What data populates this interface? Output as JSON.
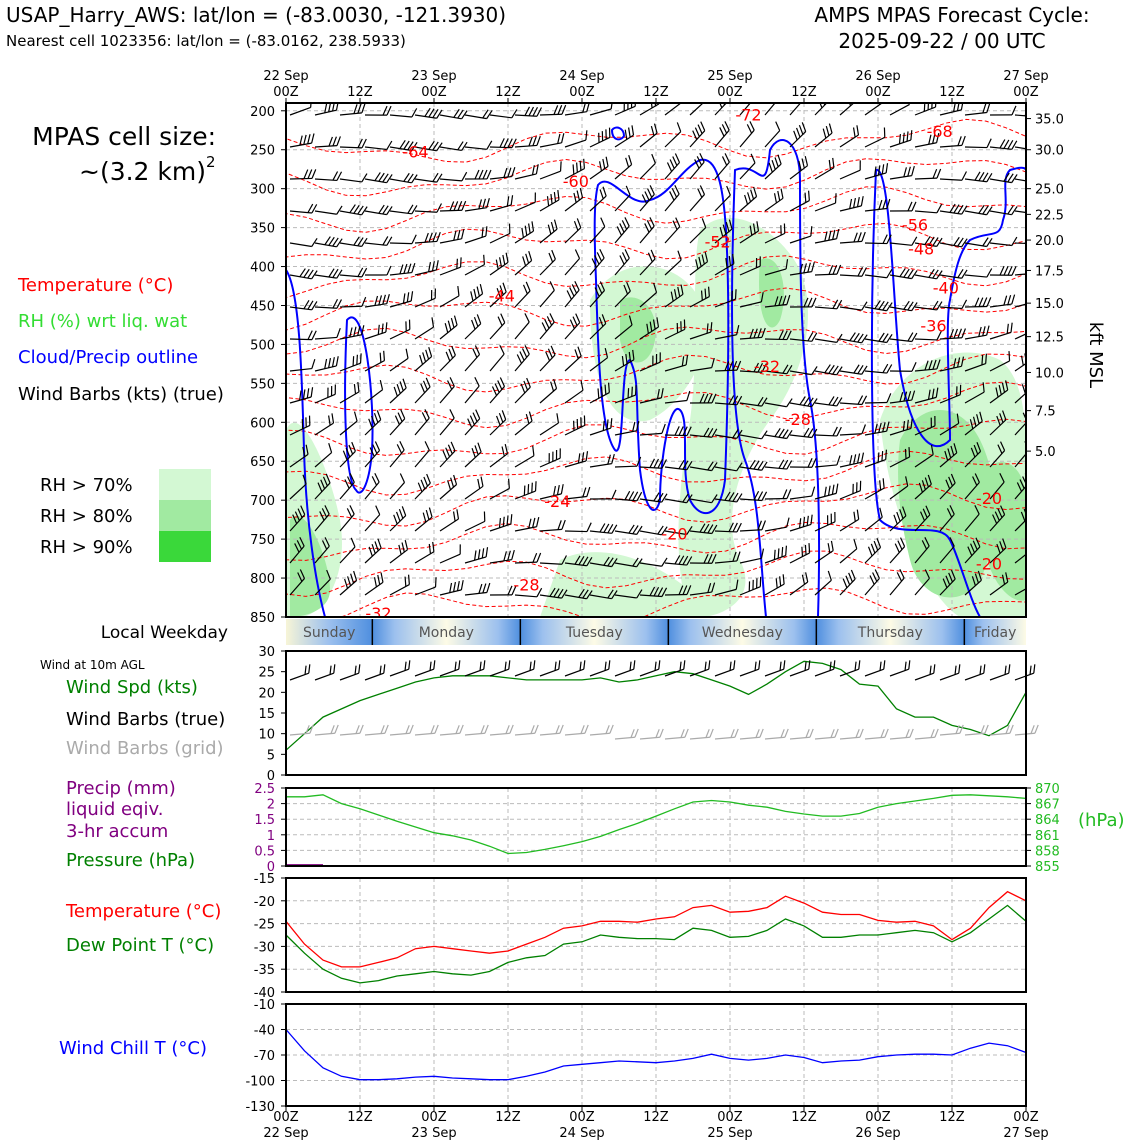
{
  "header": {
    "title_left": "USAP_Harry_AWS: lat/lon = (-83.0030, -121.3930)",
    "subtitle_left": "Nearest cell 1023356: lat/lon = (-83.0162, 238.5933)",
    "title_right_1": "AMPS MPAS Forecast Cycle:",
    "title_right_2": "2025-09-22 / 00 UTC"
  },
  "legend": {
    "cell_size_1": "MPAS cell size:",
    "cell_size_2": "~(3.2 km)",
    "cell_size_sup": "2",
    "temperature": "Temperature (°C)",
    "rh": "RH (%) wrt liq. wat",
    "cloud": "Cloud/Precip outline",
    "barbs": "Wind Barbs (kts) (true)",
    "rh70": "RH > 70%",
    "rh80": "RH > 80%",
    "rh90": "RH > 90%",
    "wind10m": "Wind at 10m AGL",
    "wind_spd": "Wind Spd (kts)",
    "wind_barbs_true": "Wind Barbs (true)",
    "wind_barbs_grid": "Wind Barbs (grid)",
    "precip_1": "Precip (mm)",
    "precip_2": "liquid eqiv.",
    "precip_3": "3-hr accum",
    "pressure": "Pressure (hPa)",
    "pressure_unit": "(hPa)",
    "temp2": "Temperature (°C)",
    "dewpoint": "Dew Point T (°C)",
    "windchill": "Wind Chill T (°C)",
    "local_weekday": "Local Weekday",
    "kft": "kft MSL"
  },
  "colors": {
    "temp": "#ff0000",
    "rh70": "#d3f8d3",
    "rh80": "#a1eaa1",
    "rh90": "#3ad83a",
    "cloud": "#0000ff",
    "wind_spd": "#008000",
    "grid_barb": "#aaaaaa",
    "precip": "#800080",
    "pressure": "#22bb22",
    "windchill": "#0000ff"
  },
  "chart_data": [
    {
      "type": "heatmap",
      "name_of_panel": "cross-section",
      "x_top_labels": [
        [
          "22 Sep",
          "00Z"
        ],
        [
          "",
          "12Z"
        ],
        [
          "23 Sep",
          "00Z"
        ],
        [
          "",
          "12Z"
        ],
        [
          "24 Sep",
          "00Z"
        ],
        [
          "",
          "12Z"
        ],
        [
          "25 Sep",
          "00Z"
        ],
        [
          "",
          "12Z"
        ],
        [
          "26 Sep",
          "00Z"
        ],
        [
          "",
          "12Z"
        ],
        [
          "27 Sep",
          "00Z"
        ]
      ],
      "x_hours_range": [
        0,
        120
      ],
      "y_pressure_ticks": [
        200,
        250,
        300,
        350,
        400,
        450,
        500,
        550,
        600,
        650,
        700,
        750,
        800,
        850
      ],
      "y_range": [
        190,
        850
      ],
      "y_right_kft_ticks": [
        {
          "p": 210,
          "label": "35.0"
        },
        {
          "p": 250,
          "label": "30.0"
        },
        {
          "p": 300,
          "label": "25.0"
        },
        {
          "p": 333,
          "label": "22.5"
        },
        {
          "p": 366,
          "label": "20.0"
        },
        {
          "p": 405,
          "label": "17.5"
        },
        {
          "p": 447,
          "label": "15.0"
        },
        {
          "p": 490,
          "label": "12.5"
        },
        {
          "p": 536,
          "label": "10.0"
        },
        {
          "p": 585,
          "label": "7.5"
        },
        {
          "p": 637,
          "label": "5.0"
        }
      ],
      "temp_labels": [
        {
          "x": 21,
          "p": 252,
          "v": "-64"
        },
        {
          "x": 47,
          "p": 290,
          "v": "-60"
        },
        {
          "x": 75,
          "p": 205,
          "v": "-72"
        },
        {
          "x": 106,
          "p": 226,
          "v": "-68"
        },
        {
          "x": 102,
          "p": 346,
          "v": "-56"
        },
        {
          "x": 103,
          "p": 377,
          "v": "-48"
        },
        {
          "x": 107,
          "p": 427,
          "v": "-40"
        },
        {
          "x": 105,
          "p": 476,
          "v": "-36"
        },
        {
          "x": 35,
          "p": 437,
          "v": "-44"
        },
        {
          "x": 70,
          "p": 368,
          "v": "-52"
        },
        {
          "x": 78,
          "p": 528,
          "v": "-32"
        },
        {
          "x": 83,
          "p": 596,
          "v": "-28"
        },
        {
          "x": 44,
          "p": 701,
          "v": "-24"
        },
        {
          "x": 63,
          "p": 743,
          "v": "-20"
        },
        {
          "x": 114,
          "p": 697,
          "v": "-20"
        },
        {
          "x": 114,
          "p": 781,
          "v": "-20"
        },
        {
          "x": 39,
          "p": 808,
          "v": "-28"
        },
        {
          "x": 15,
          "p": 845,
          "v": "-32"
        }
      ]
    },
    {
      "type": "line",
      "name_of_panel": "wind",
      "ylim": [
        0,
        30
      ],
      "yticks": [
        0,
        5,
        10,
        15,
        20,
        25,
        30
      ],
      "x": [
        0,
        3,
        6,
        9,
        12,
        15,
        18,
        21,
        24,
        27,
        30,
        33,
        36,
        39,
        42,
        45,
        48,
        51,
        54,
        57,
        60,
        63,
        66,
        69,
        72,
        75,
        78,
        81,
        84,
        87,
        90,
        93,
        96,
        99,
        102,
        105,
        108,
        111,
        114,
        117,
        120
      ],
      "series": [
        {
          "name": "Wind Spd (kts)",
          "values": [
            6,
            10,
            14,
            16,
            18,
            19.5,
            21,
            22.5,
            23.5,
            24,
            24,
            24,
            23.5,
            23,
            23,
            23,
            23,
            23.5,
            22.5,
            23,
            24,
            25,
            24.5,
            23,
            21.5,
            19.5,
            22,
            25,
            27.5,
            27,
            25.5,
            22,
            21.5,
            16,
            14,
            14,
            12,
            11,
            9.5,
            12,
            20
          ]
        }
      ]
    },
    {
      "type": "line",
      "name_of_panel": "precip-pressure",
      "ylim_left": [
        0,
        2.5
      ],
      "yticks_left": [
        0,
        0.5,
        1.0,
        1.5,
        2.0,
        2.5
      ],
      "ylim_right": [
        855,
        870
      ],
      "yticks_right": [
        855,
        858,
        861,
        864,
        867,
        870
      ],
      "x": [
        0,
        3,
        6,
        9,
        12,
        15,
        18,
        21,
        24,
        27,
        30,
        33,
        36,
        39,
        42,
        45,
        48,
        51,
        54,
        57,
        60,
        63,
        66,
        69,
        72,
        75,
        78,
        81,
        84,
        87,
        90,
        93,
        96,
        99,
        102,
        105,
        108,
        111,
        114,
        117,
        120
      ],
      "series": [
        {
          "name": "Pressure (hPa)",
          "values": [
            868.3,
            868.3,
            868.7,
            867,
            866,
            864.8,
            863.6,
            862.5,
            861.4,
            860.8,
            860,
            858.8,
            857.4,
            857.6,
            858.2,
            858.9,
            859.7,
            860.7,
            862,
            863.2,
            864.6,
            866,
            867.3,
            867.6,
            867.3,
            866.7,
            866.3,
            865.5,
            865,
            864.6,
            864.6,
            865.1,
            866.3,
            867,
            867.5,
            868,
            868.6,
            868.7,
            868.5,
            868.3,
            868
          ],
          "axis": "right"
        },
        {
          "name": "Precip (mm)",
          "values": [
            0.06,
            0.06,
            0,
            0,
            0,
            0,
            0,
            0,
            0,
            0,
            0,
            0,
            0,
            0,
            0,
            0,
            0,
            0,
            0,
            0,
            0,
            0,
            0,
            0,
            0,
            0,
            0,
            0,
            0,
            0,
            0,
            0,
            0,
            0,
            0,
            0,
            0,
            0,
            0,
            0,
            0
          ],
          "axis": "left"
        }
      ]
    },
    {
      "type": "line",
      "name_of_panel": "temperature",
      "ylim": [
        -40,
        -15
      ],
      "yticks": [
        -40,
        -35,
        -30,
        -25,
        -20,
        -15
      ],
      "x": [
        0,
        3,
        6,
        9,
        12,
        15,
        18,
        21,
        24,
        27,
        30,
        33,
        36,
        39,
        42,
        45,
        48,
        51,
        54,
        57,
        60,
        63,
        66,
        69,
        72,
        75,
        78,
        81,
        84,
        87,
        90,
        93,
        96,
        99,
        102,
        105,
        108,
        111,
        114,
        117,
        120
      ],
      "series": [
        {
          "name": "Temperature (°C)",
          "values": [
            -24.5,
            -29.5,
            -33,
            -34.5,
            -34.5,
            -33.5,
            -32.5,
            -30.5,
            -30,
            -30.5,
            -31,
            -31.5,
            -31,
            -29.5,
            -28,
            -26,
            -25.5,
            -24.5,
            -24.5,
            -24.7,
            -24,
            -23.5,
            -21.5,
            -21,
            -22.5,
            -22.3,
            -21.5,
            -19,
            -20.5,
            -22.5,
            -23,
            -23,
            -24.3,
            -24.7,
            -24.5,
            -25.5,
            -28.5,
            -26,
            -21.5,
            -18,
            -20
          ]
        },
        {
          "name": "Dew Point T (°C)",
          "values": [
            -27.5,
            -31.5,
            -35,
            -37,
            -38,
            -37.5,
            -36.5,
            -36,
            -35.5,
            -36,
            -36.3,
            -35.5,
            -33.5,
            -32.5,
            -32,
            -29.5,
            -29,
            -27.5,
            -28,
            -28.3,
            -28.3,
            -28.5,
            -26,
            -26.5,
            -28,
            -27.8,
            -26.5,
            -24,
            -25.5,
            -28,
            -28,
            -27.5,
            -27.5,
            -27,
            -26.5,
            -27,
            -29,
            -27,
            -24,
            -21,
            -24.5
          ]
        }
      ]
    },
    {
      "type": "line",
      "name_of_panel": "windchill",
      "ylim": [
        -130,
        -10
      ],
      "yticks": [
        -130,
        -100,
        -70,
        -40,
        -10
      ],
      "x_bottom_labels": [
        [
          "00Z",
          "22 Sep"
        ],
        [
          "12Z",
          ""
        ],
        [
          "00Z",
          "23 Sep"
        ],
        [
          "12Z",
          ""
        ],
        [
          "00Z",
          "24 Sep"
        ],
        [
          "12Z",
          ""
        ],
        [
          "00Z",
          "25 Sep"
        ],
        [
          "12Z",
          ""
        ],
        [
          "00Z",
          "26 Sep"
        ],
        [
          "12Z",
          ""
        ],
        [
          "00Z",
          "27 Sep"
        ]
      ],
      "x": [
        0,
        3,
        6,
        9,
        12,
        15,
        18,
        21,
        24,
        27,
        30,
        33,
        36,
        39,
        42,
        45,
        48,
        51,
        54,
        57,
        60,
        63,
        66,
        69,
        72,
        75,
        78,
        81,
        84,
        87,
        90,
        93,
        96,
        99,
        102,
        105,
        108,
        111,
        114,
        117,
        120
      ],
      "series": [
        {
          "name": "Wind Chill T (°C)",
          "values": [
            -40,
            -65,
            -85,
            -95,
            -99,
            -99,
            -98,
            -96,
            -95,
            -97,
            -98,
            -99,
            -99,
            -95,
            -90,
            -83,
            -81,
            -79,
            -77,
            -78,
            -79,
            -77,
            -74,
            -69,
            -74,
            -76,
            -74,
            -70,
            -73,
            -79,
            -77,
            -76,
            -72,
            -70,
            -69,
            -69,
            -70,
            -62,
            -56,
            -59,
            -67
          ]
        }
      ]
    }
  ],
  "weekday_bar": {
    "days": [
      "Sunday",
      "Monday",
      "Tuesday",
      "Wednesday",
      "Thursday",
      "Friday"
    ]
  }
}
